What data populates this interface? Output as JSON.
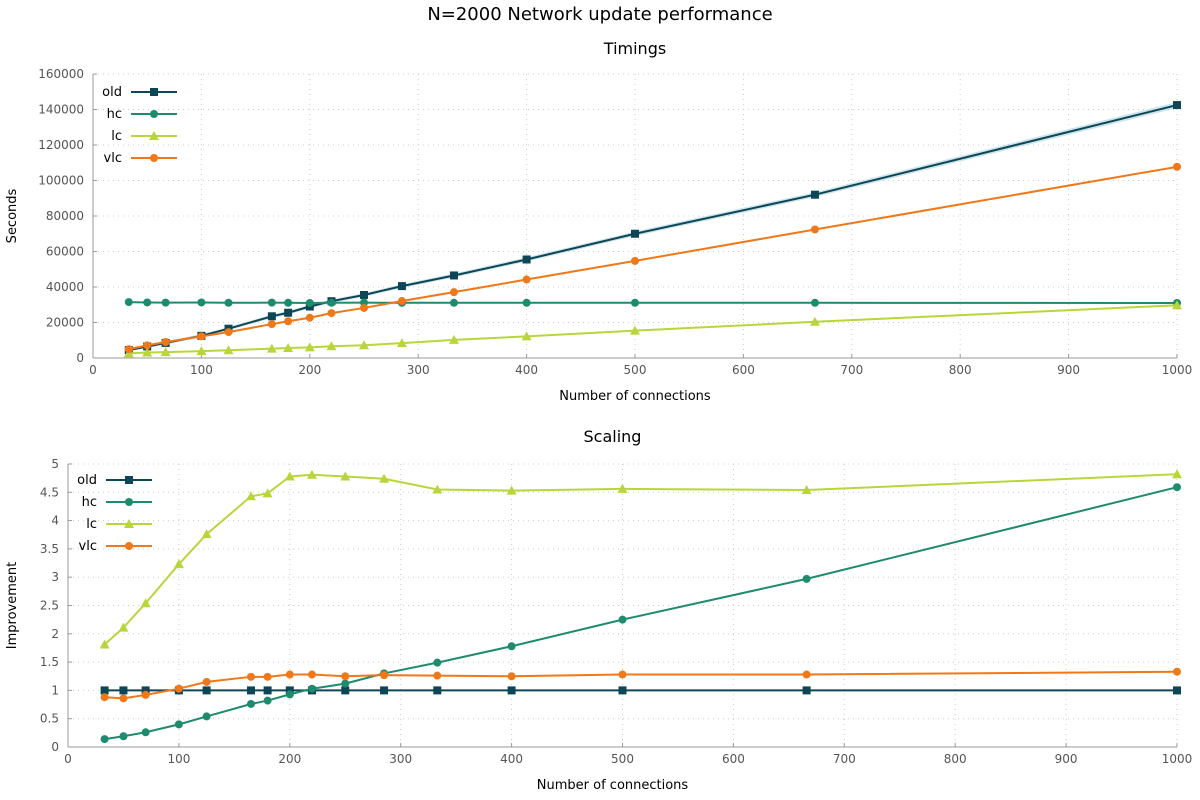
{
  "page": {
    "title": "N=2000 Network update performance"
  },
  "styles": {
    "series_colors": {
      "old": "#0d4656",
      "hc": "#1e8a6e",
      "lc": "#b8d63c",
      "vlc": "#f07818"
    },
    "series_markers": {
      "old": "square",
      "hc": "circle",
      "lc": "triangle",
      "vlc": "circle"
    },
    "grid_color": "#cccccc",
    "band_color": "#a8d0dc"
  },
  "chart_data": [
    {
      "type": "line",
      "title": "Timings",
      "xlabel": "Number of connections",
      "ylabel": "Seconds",
      "xlim": [
        0,
        1000
      ],
      "ylim": [
        0,
        160000
      ],
      "xticks": [
        0,
        100,
        200,
        300,
        400,
        500,
        600,
        700,
        800,
        900,
        1000
      ],
      "yticks": [
        0,
        20000,
        40000,
        60000,
        80000,
        100000,
        120000,
        140000,
        160000
      ],
      "grid": true,
      "legend": "top-left",
      "series": [
        {
          "name": "old",
          "x": [
            33,
            50,
            67,
            100,
            125,
            165,
            180,
            200,
            220,
            250,
            285,
            333,
            400,
            500,
            666,
            1000
          ],
          "y": [
            4500,
            6500,
            8500,
            12500,
            16500,
            23500,
            25500,
            29000,
            32000,
            35500,
            40500,
            46500,
            55500,
            70000,
            92000,
            142500
          ]
        },
        {
          "name": "hc",
          "x": [
            33,
            50,
            67,
            100,
            125,
            165,
            180,
            200,
            220,
            250,
            285,
            333,
            400,
            500,
            666,
            1000
          ],
          "y": [
            31500,
            31300,
            31200,
            31300,
            31100,
            31200,
            31100,
            31000,
            31100,
            31200,
            31100,
            31100,
            31100,
            31100,
            31100,
            31000
          ]
        },
        {
          "name": "lc",
          "x": [
            33,
            50,
            67,
            100,
            125,
            165,
            180,
            200,
            220,
            250,
            285,
            333,
            400,
            500,
            666,
            1000
          ],
          "y": [
            2600,
            3100,
            3300,
            3900,
            4400,
            5300,
            5600,
            6000,
            6600,
            7200,
            8400,
            10200,
            12200,
            15400,
            20400,
            29700
          ]
        },
        {
          "name": "vlc",
          "x": [
            33,
            50,
            67,
            100,
            125,
            165,
            180,
            200,
            220,
            250,
            285,
            333,
            400,
            500,
            666,
            1000
          ],
          "y": [
            5000,
            7100,
            9000,
            12200,
            14600,
            19100,
            20700,
            22700,
            25300,
            28200,
            32100,
            37100,
            44200,
            54700,
            72400,
            107700
          ]
        }
      ]
    },
    {
      "type": "line",
      "title": "Scaling",
      "xlabel": "Number of connections",
      "ylabel": "Improvement",
      "xlim": [
        0,
        1000
      ],
      "ylim": [
        0,
        5
      ],
      "xticks": [
        0,
        100,
        200,
        300,
        400,
        500,
        600,
        700,
        800,
        900,
        1000
      ],
      "yticks": [
        0,
        0.5,
        1,
        1.5,
        2,
        2.5,
        3,
        3.5,
        4,
        4.5,
        5
      ],
      "grid": true,
      "legend": "top-left",
      "series": [
        {
          "name": "old",
          "x": [
            33,
            50,
            70,
            100,
            125,
            165,
            180,
            200,
            220,
            250,
            285,
            333,
            400,
            500,
            666,
            1000
          ],
          "y": [
            1,
            1,
            1,
            1,
            1,
            1,
            1,
            1,
            1,
            1,
            1,
            1,
            1,
            1,
            1,
            1
          ]
        },
        {
          "name": "hc",
          "x": [
            33,
            50,
            70,
            100,
            125,
            165,
            180,
            200,
            220,
            250,
            285,
            333,
            400,
            500,
            666,
            1000
          ],
          "y": [
            0.14,
            0.19,
            0.26,
            0.4,
            0.54,
            0.76,
            0.82,
            0.93,
            1.03,
            1.12,
            1.3,
            1.49,
            1.78,
            2.25,
            2.97,
            4.59
          ]
        },
        {
          "name": "lc",
          "x": [
            33,
            50,
            70,
            100,
            125,
            165,
            180,
            200,
            220,
            250,
            285,
            333,
            400,
            500,
            666,
            1000
          ],
          "y": [
            1.81,
            2.11,
            2.54,
            3.23,
            3.76,
            4.43,
            4.48,
            4.78,
            4.81,
            4.78,
            4.74,
            4.55,
            4.53,
            4.56,
            4.54,
            4.82
          ]
        },
        {
          "name": "vlc",
          "x": [
            33,
            50,
            70,
            100,
            125,
            165,
            180,
            200,
            220,
            250,
            285,
            333,
            400,
            500,
            666,
            1000
          ],
          "y": [
            0.88,
            0.86,
            0.92,
            1.03,
            1.15,
            1.24,
            1.24,
            1.28,
            1.28,
            1.25,
            1.27,
            1.26,
            1.25,
            1.28,
            1.28,
            1.33
          ]
        }
      ]
    }
  ]
}
